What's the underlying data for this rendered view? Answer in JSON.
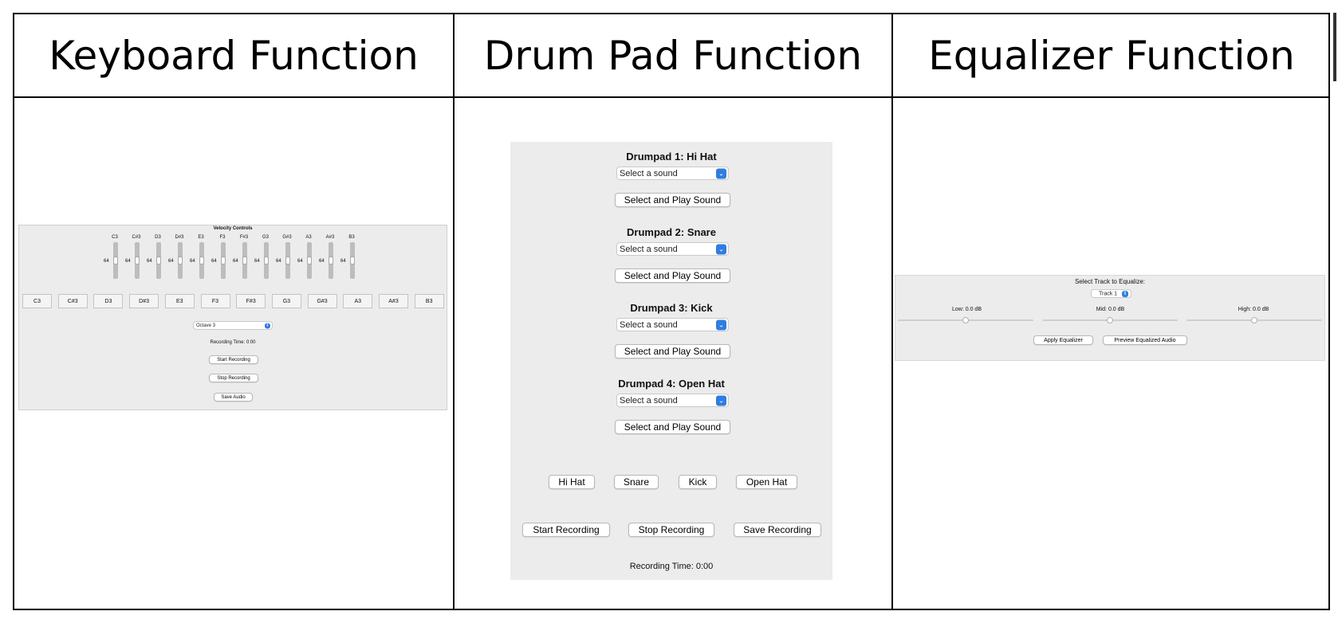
{
  "columns": [
    {
      "title": "Keyboard Function"
    },
    {
      "title": "Drum Pad Function"
    },
    {
      "title": "Equalizer Function"
    }
  ],
  "keyboard": {
    "velocity_title": "Velocity Controls",
    "velocity_value": "64",
    "notes": [
      "C3",
      "C#3",
      "D3",
      "D#3",
      "E3",
      "F3",
      "F#3",
      "G3",
      "G#3",
      "A3",
      "A#3",
      "B3"
    ],
    "keys": [
      "C3",
      "C#3",
      "D3",
      "D#3",
      "E3",
      "F3",
      "F#3",
      "G3",
      "G#3",
      "A3",
      "A#3",
      "B3"
    ],
    "octave_select": "Octave 3",
    "recording_time": "Recording Time: 0:00",
    "start_label": "Start Recording",
    "stop_label": "Stop Recording",
    "save_label": "Save Audio"
  },
  "drumpad": {
    "pads": [
      {
        "heading": "Drumpad 1: Hi Hat",
        "select": "Select a sound",
        "button": "Select and Play Sound"
      },
      {
        "heading": "Drumpad 2: Snare",
        "select": "Select a sound",
        "button": "Select and Play Sound"
      },
      {
        "heading": "Drumpad 3: Kick",
        "select": "Select a sound",
        "button": "Select and Play Sound"
      },
      {
        "heading": "Drumpad 4: Open Hat",
        "select": "Select a sound",
        "button": "Select and Play Sound"
      }
    ],
    "play_buttons": [
      "Hi Hat",
      "Snare",
      "Kick",
      "Open Hat"
    ],
    "record_buttons": [
      "Start Recording",
      "Stop Recording",
      "Save Recording"
    ],
    "recording_time": "Recording Time: 0:00"
  },
  "equalizer": {
    "select_label": "Select Track to Equalize:",
    "track_select": "Track 1",
    "bands": [
      {
        "label": "Low: 0.0 dB",
        "value_db": 0.0
      },
      {
        "label": "Mid: 0.0 dB",
        "value_db": 0.0
      },
      {
        "label": "High: 0.0 dB",
        "value_db": 0.0
      }
    ],
    "apply_label": "Apply Equalizer",
    "preview_label": "Preview Equalized Audio"
  },
  "colors": {
    "panel_bg": "#ececec",
    "select_accent": "#2f7de1",
    "border": "#000000"
  }
}
